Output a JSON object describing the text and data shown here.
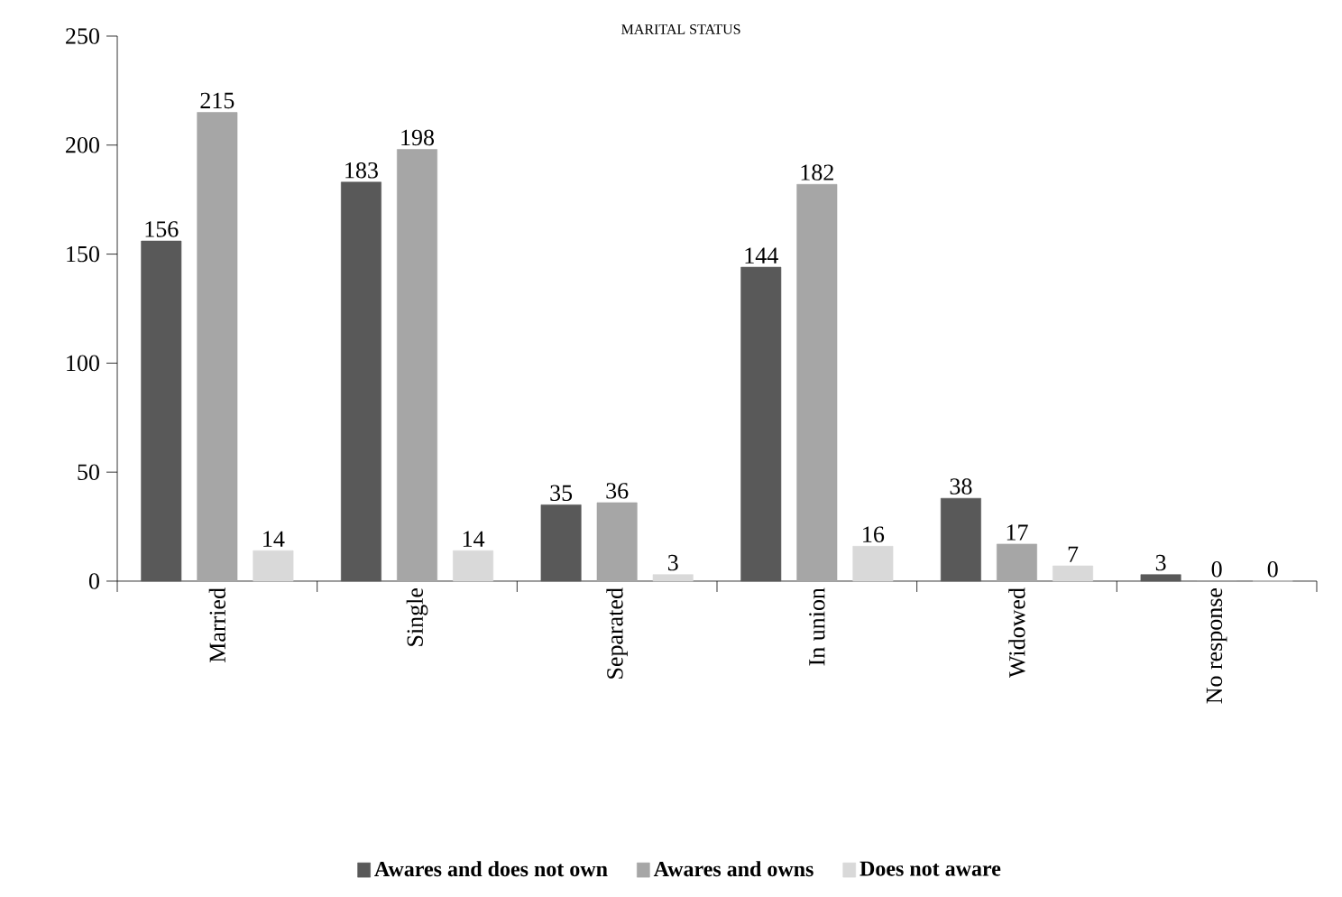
{
  "chart_data": {
    "type": "bar",
    "title": "MARITAL STATUS",
    "categories": [
      "Married",
      "Single",
      "Separated",
      "In union",
      "Widowed",
      "No response"
    ],
    "series": [
      {
        "name": "Awares and does not own",
        "color": "#595959",
        "values": [
          156,
          183,
          35,
          144,
          38,
          3
        ]
      },
      {
        "name": "Awares and owns",
        "color": "#a6a6a6",
        "values": [
          215,
          198,
          36,
          182,
          17,
          0
        ]
      },
      {
        "name": "Does not aware",
        "color": "#d9d9d9",
        "values": [
          14,
          14,
          3,
          16,
          7,
          0
        ]
      }
    ],
    "ylim": [
      0,
      250
    ],
    "yticks": [
      0,
      50,
      100,
      150,
      200,
      250
    ],
    "grid": false,
    "legend": "bottom",
    "data_labels": true
  }
}
